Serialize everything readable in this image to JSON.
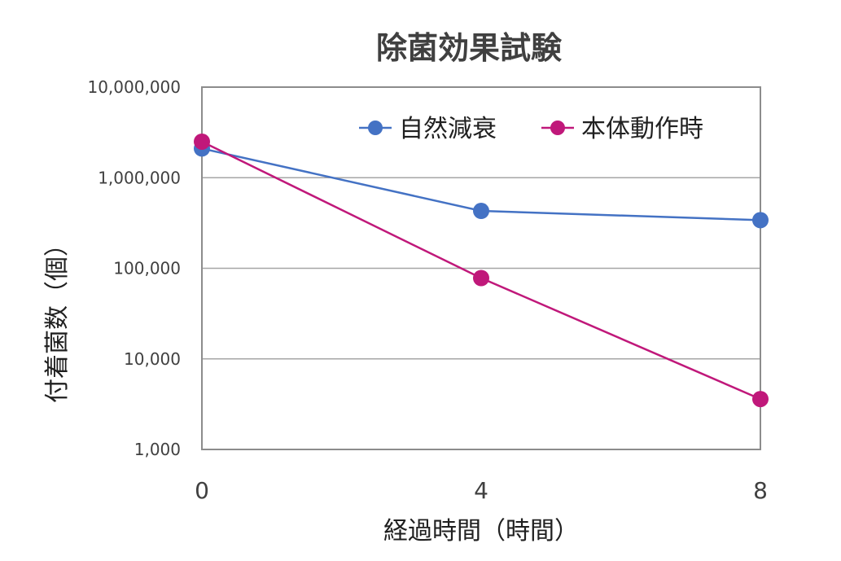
{
  "chart_data": {
    "type": "line",
    "title": "除菌効果試験",
    "xlabel": "経過時間（時間）",
    "ylabel": "付着菌数（個）",
    "y_scale": "log",
    "ylim": [
      1000,
      10000000
    ],
    "xlim": [
      0,
      8
    ],
    "x": [
      0,
      4,
      8
    ],
    "x_tick_labels": [
      "0",
      "4",
      "8"
    ],
    "y_tick_labels": [
      "1,000",
      "10,000",
      "100,000",
      "1,000,000",
      "10,000,000"
    ],
    "y_tick_values": [
      1000,
      10000,
      100000,
      1000000,
      10000000
    ],
    "grid": true,
    "legend_position": "top-right",
    "series": [
      {
        "name": "自然減衰",
        "color": "#4472C4",
        "values": [
          2100000,
          430000,
          340000
        ]
      },
      {
        "name": "本体動作時",
        "color": "#C0187A",
        "values": [
          2500000,
          78000,
          3600
        ]
      }
    ]
  }
}
